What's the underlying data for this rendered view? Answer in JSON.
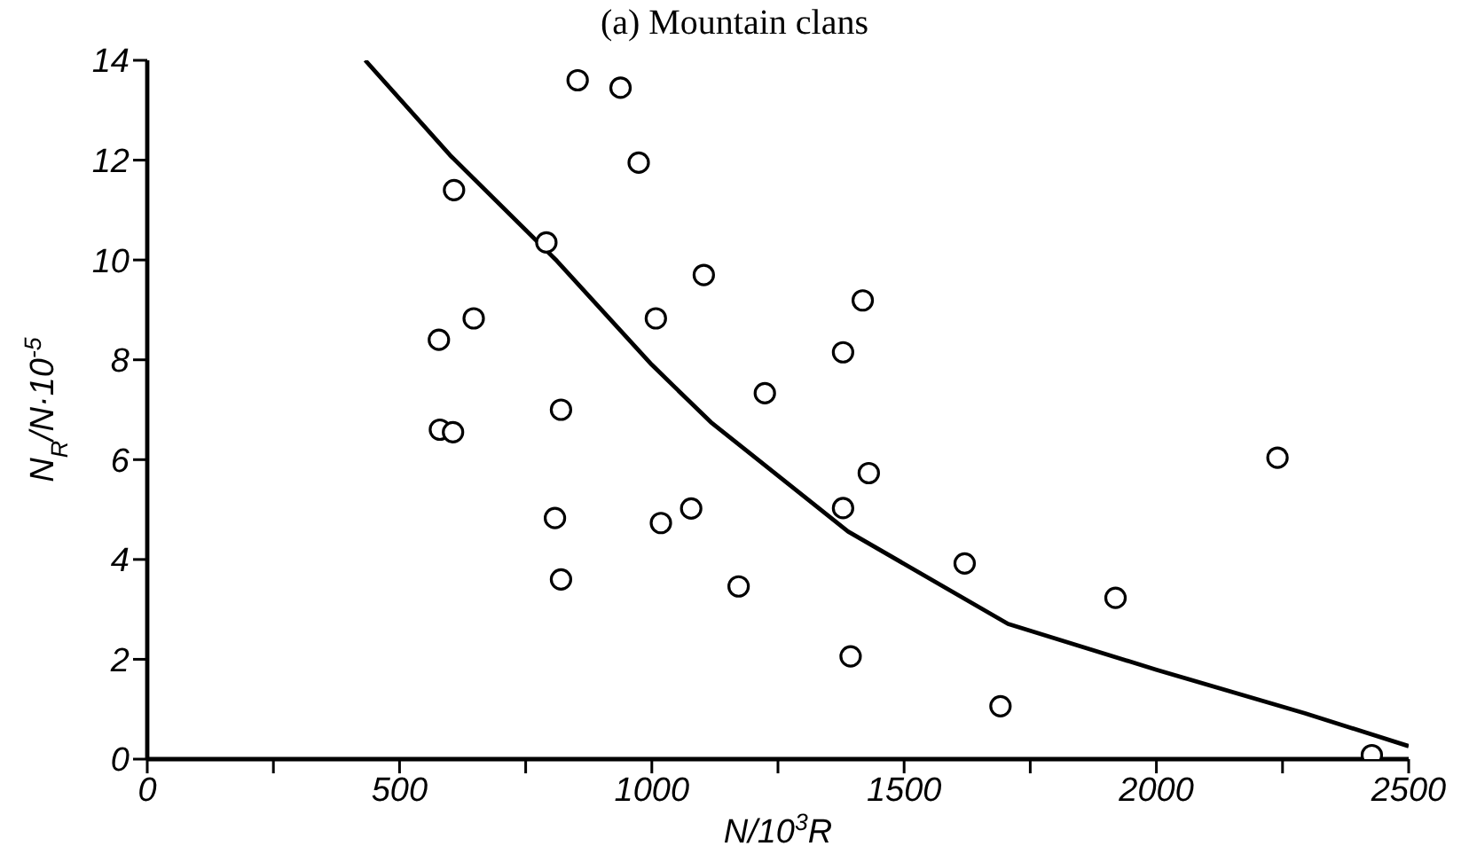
{
  "chart_data": {
    "type": "scatter",
    "title": "(a) Mountain clans",
    "xlabel": "N/10$^{3}$R",
    "ylabel": "N$_{R}$/N·10$^{-5}$",
    "xlim": [
      0,
      2500
    ],
    "ylim": [
      0,
      14
    ],
    "xticks": [
      0,
      {
        "value": 250,
        "label": null
      },
      500,
      {
        "value": 750,
        "label": null
      },
      1000,
      {
        "value": 1250,
        "label": null
      },
      1500,
      {
        "value": 1750,
        "label": null
      },
      2000,
      {
        "value": 2250,
        "label": null
      },
      2500
    ],
    "yticks": [
      0,
      2,
      4,
      6,
      8,
      10,
      12,
      14
    ],
    "grid": false,
    "series": [
      {
        "type": "scatter",
        "color": "#000000",
        "marker": "circle",
        "x": [
          853,
          938,
          974,
          608,
          791,
          1103,
          1008,
          647,
          578,
          820,
          580,
          606,
          808,
          1018,
          1078,
          820,
          1172,
          1418,
          1379,
          1224,
          1430,
          1379,
          1620,
          1919,
          1394,
          1691,
          2240,
          2427
        ],
        "values": [
          13.6,
          13.45,
          11.95,
          11.4,
          10.35,
          9.7,
          8.83,
          8.83,
          8.4,
          7.0,
          6.6,
          6.55,
          4.83,
          4.73,
          5.02,
          3.6,
          3.46,
          9.19,
          8.15,
          7.33,
          5.73,
          5.03,
          3.92,
          3.23,
          2.06,
          1.06,
          6.04,
          0.08
        ]
      },
      {
        "type": "line",
        "color": "#000000",
        "marker": "none",
        "line_style": "solid",
        "x": [
          432,
          600,
          812,
          1000,
          1117,
          1389,
          1706,
          2000,
          2294,
          2500
        ],
        "values": [
          14,
          12.1,
          9.98,
          7.9,
          6.75,
          4.56,
          2.71,
          1.79,
          0.92,
          0.26
        ]
      }
    ]
  }
}
